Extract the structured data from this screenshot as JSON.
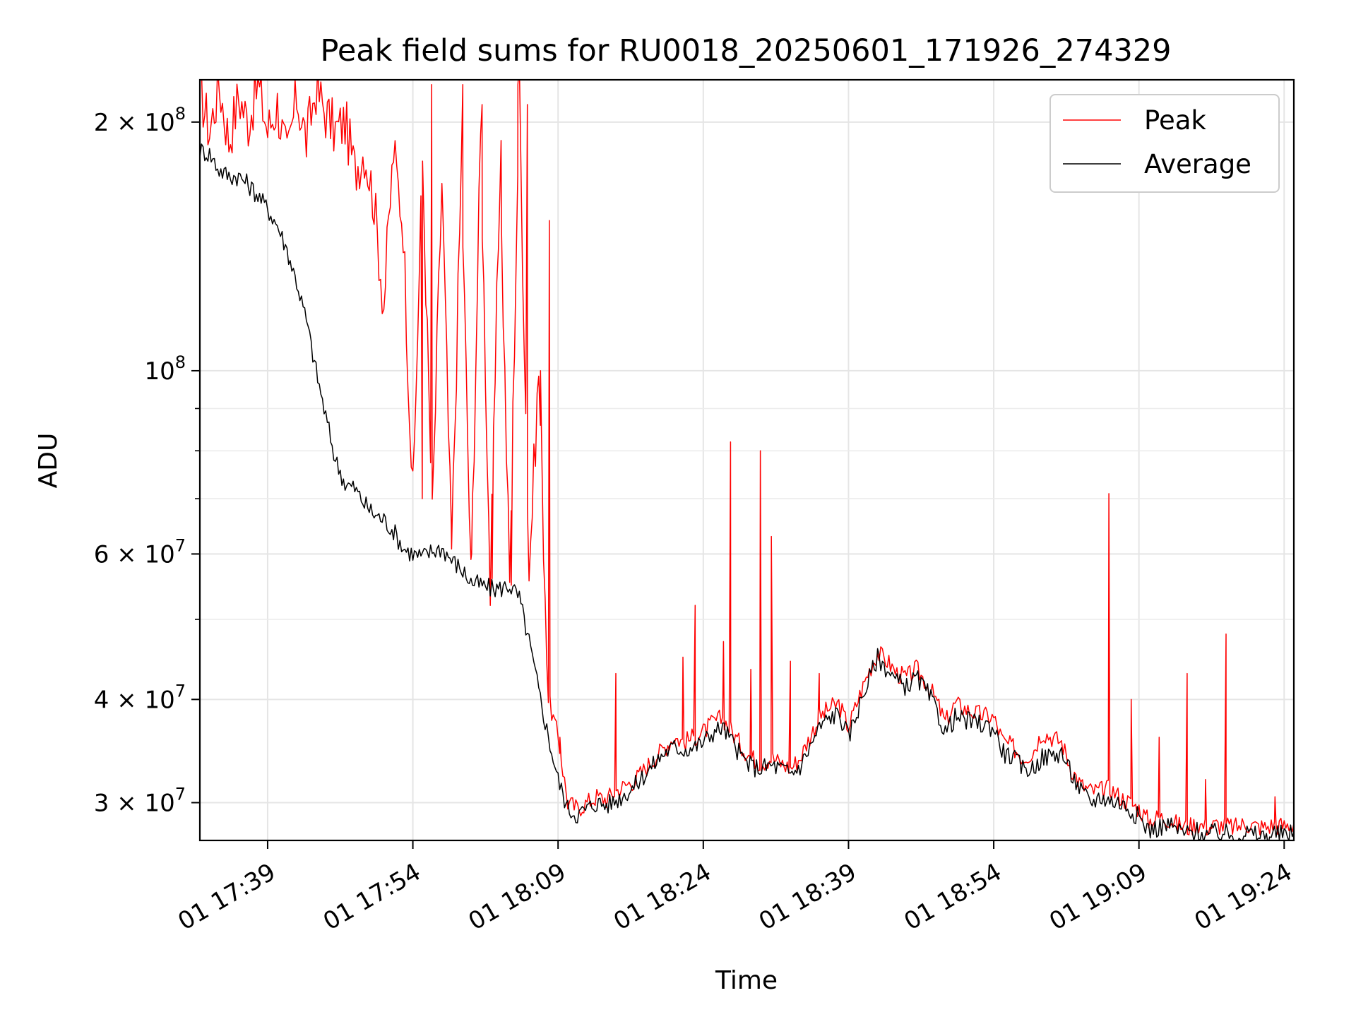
{
  "chart_data": {
    "type": "line",
    "title": "Peak field sums for RU0018_20250601_171926_274329",
    "xlabel": "Time",
    "ylabel": "ADU",
    "yscale": "log",
    "ylim": [
      27000000,
      225000000
    ],
    "xlim": [
      "01 17:32:00",
      "01 19:25:00"
    ],
    "grid": true,
    "legend_position": "top-right",
    "x_ticks": [
      "01 17:39",
      "01 17:54",
      "01 18:09",
      "01 18:24",
      "01 18:39",
      "01 18:54",
      "01 19:09",
      "01 19:24"
    ],
    "y_tick_labels": [
      {
        "value": 200000000,
        "base": "2 × 10",
        "exp": "8"
      },
      {
        "value": 100000000,
        "base": "10",
        "exp": "8"
      },
      {
        "value": 60000000,
        "base": "6 × 10",
        "exp": "7"
      },
      {
        "value": 40000000,
        "base": "4 × 10",
        "exp": "7"
      },
      {
        "value": 30000000,
        "base": "3 × 10",
        "exp": "7"
      }
    ],
    "y_minor_ticks": [
      50000000,
      70000000,
      80000000,
      90000000
    ],
    "series": [
      {
        "name": "Peak",
        "color": "#ff0000",
        "points": [
          [
            "17:32",
            220000000
          ],
          [
            "17:33",
            195000000
          ],
          [
            "17:34",
            222000000
          ],
          [
            "17:35",
            190000000
          ],
          [
            "17:36",
            215000000
          ],
          [
            "17:37",
            200000000
          ],
          [
            "17:38",
            222000000
          ],
          [
            "17:39",
            195000000
          ],
          [
            "17:40",
            210000000
          ],
          [
            "17:41",
            180000000
          ],
          [
            "17:42",
            215000000
          ],
          [
            "17:43",
            190000000
          ],
          [
            "17:44",
            220000000
          ],
          [
            "17:45",
            205000000
          ],
          [
            "17:46",
            195000000
          ],
          [
            "17:47",
            200000000
          ],
          [
            "17:48",
            175000000
          ],
          [
            "17:49",
            185000000
          ],
          [
            "17:50",
            160000000
          ],
          [
            "17:51",
            120000000
          ],
          [
            "17:52",
            185000000
          ],
          [
            "17:53",
            150000000
          ],
          [
            "17:54",
            70000000
          ],
          [
            "17:55",
            180000000
          ],
          [
            "17:56",
            66000000
          ],
          [
            "17:57",
            170000000
          ],
          [
            "17:58",
            60000000
          ],
          [
            "17:59",
            175000000
          ],
          [
            "18:00",
            56000000
          ],
          [
            "18:01",
            190000000
          ],
          [
            "18:02",
            54000000
          ],
          [
            "18:03",
            175000000
          ],
          [
            "18:04",
            55000000
          ],
          [
            "18:05",
            222000000
          ],
          [
            "18:06",
            57000000
          ],
          [
            "18:07",
            100000000
          ],
          [
            "18:08",
            40000000
          ],
          [
            "18:09",
            36000000
          ],
          [
            "18:10",
            30000000
          ],
          [
            "18:11",
            29500000
          ],
          [
            "18:12",
            30000000
          ],
          [
            "18:13",
            30500000
          ],
          [
            "18:14",
            30300000
          ],
          [
            "18:15",
            31000000
          ],
          [
            "18:16",
            31500000
          ],
          [
            "18:17",
            32000000
          ],
          [
            "18:18",
            33000000
          ],
          [
            "18:19",
            34000000
          ],
          [
            "18:20",
            35000000
          ],
          [
            "18:21",
            36000000
          ],
          [
            "18:22",
            35500000
          ],
          [
            "18:23",
            36000000
          ],
          [
            "18:24",
            36500000
          ],
          [
            "18:25",
            37500000
          ],
          [
            "18:26",
            38000000
          ],
          [
            "18:27",
            36500000
          ],
          [
            "18:28",
            35000000
          ],
          [
            "18:29",
            34000000
          ],
          [
            "18:30",
            33500000
          ],
          [
            "18:31",
            34000000
          ],
          [
            "18:32",
            33500000
          ],
          [
            "18:33",
            33000000
          ],
          [
            "18:34",
            34000000
          ],
          [
            "18:35",
            36000000
          ],
          [
            "18:36",
            38000000
          ],
          [
            "18:37",
            39000000
          ],
          [
            "18:38",
            39500000
          ],
          [
            "18:39",
            37000000
          ],
          [
            "18:40",
            40000000
          ],
          [
            "18:41",
            43000000
          ],
          [
            "18:42",
            45500000
          ],
          [
            "18:43",
            44500000
          ],
          [
            "18:44",
            43000000
          ],
          [
            "18:45",
            42500000
          ],
          [
            "18:46",
            43500000
          ],
          [
            "18:47",
            42000000
          ],
          [
            "18:48",
            40000000
          ],
          [
            "18:49",
            37500000
          ],
          [
            "18:50",
            39500000
          ],
          [
            "18:52",
            38500000
          ],
          [
            "18:54",
            38000000
          ],
          [
            "18:55",
            35500000
          ],
          [
            "18:56",
            35000000
          ],
          [
            "18:57",
            34000000
          ],
          [
            "18:58",
            34500000
          ],
          [
            "18:59",
            36500000
          ],
          [
            "19:00",
            36000000
          ],
          [
            "19:01",
            35500000
          ],
          [
            "19:02",
            33000000
          ],
          [
            "19:03",
            31500000
          ],
          [
            "19:04",
            31000000
          ],
          [
            "19:05",
            31000000
          ],
          [
            "19:06",
            31200000
          ],
          [
            "19:07",
            30500000
          ],
          [
            "19:08",
            30000000
          ],
          [
            "19:09",
            29500000
          ],
          [
            "19:10",
            28500000
          ],
          [
            "19:11",
            28800000
          ],
          [
            "19:12",
            28700000
          ],
          [
            "19:13",
            28200000
          ],
          [
            "19:14",
            28000000
          ],
          [
            "19:15",
            28300000
          ],
          [
            "19:16",
            28000000
          ],
          [
            "19:17",
            28200000
          ],
          [
            "19:18",
            28100000
          ],
          [
            "19:19",
            28000000
          ],
          [
            "19:20",
            28300000
          ],
          [
            "19:21",
            28100000
          ],
          [
            "19:22",
            28000000
          ],
          [
            "19:23",
            28200000
          ],
          [
            "19:24",
            28100000
          ],
          [
            "19:25",
            28300000
          ]
        ],
        "spikes": [
          [
            "17:55",
            70000000
          ],
          [
            "17:56",
            222000000
          ],
          [
            "17:58",
            65000000
          ],
          [
            "17:59",
            222000000
          ],
          [
            "18:00",
            60000000
          ],
          [
            "18:01",
            210000000
          ],
          [
            "18:02",
            56000000
          ],
          [
            "18:03",
            190000000
          ],
          [
            "18:04",
            55000000
          ],
          [
            "18:05",
            222000000
          ],
          [
            "18:06",
            210000000
          ],
          [
            "18:07",
            100000000
          ],
          [
            "18:08",
            152000000
          ],
          [
            "18:09",
            36000000
          ],
          [
            "18:15",
            43000000
          ],
          [
            "18:22",
            45000000
          ],
          [
            "18:23",
            52000000
          ],
          [
            "18:26",
            47000000
          ],
          [
            "18:27",
            82000000
          ],
          [
            "18:29",
            43500000
          ],
          [
            "18:30",
            80000000
          ],
          [
            "18:31",
            63000000
          ],
          [
            "18:33",
            44500000
          ],
          [
            "18:36",
            43000000
          ],
          [
            "19:06",
            71000000
          ],
          [
            "19:08",
            40000000
          ],
          [
            "19:11",
            36000000
          ],
          [
            "19:14",
            43000000
          ],
          [
            "19:16",
            32000000
          ],
          [
            "19:18",
            48000000
          ],
          [
            "19:23",
            30500000
          ]
        ]
      },
      {
        "name": "Average",
        "color": "#000000",
        "points": [
          [
            "17:32",
            185000000
          ],
          [
            "17:33",
            183000000
          ],
          [
            "17:34",
            175000000
          ],
          [
            "17:35",
            172000000
          ],
          [
            "17:36",
            172000000
          ],
          [
            "17:37",
            168000000
          ],
          [
            "17:38",
            163000000
          ],
          [
            "17:39",
            157000000
          ],
          [
            "17:40",
            150000000
          ],
          [
            "17:41",
            140000000
          ],
          [
            "17:42",
            128000000
          ],
          [
            "17:43",
            115000000
          ],
          [
            "17:44",
            100000000
          ],
          [
            "17:45",
            88000000
          ],
          [
            "17:46",
            78000000
          ],
          [
            "17:47",
            73000000
          ],
          [
            "17:48",
            72000000
          ],
          [
            "17:49",
            69000000
          ],
          [
            "17:50",
            67000000
          ],
          [
            "17:51",
            66000000
          ],
          [
            "17:52",
            64000000
          ],
          [
            "17:53",
            61000000
          ],
          [
            "17:54",
            60000000
          ],
          [
            "17:55",
            59500000
          ],
          [
            "17:56",
            60500000
          ],
          [
            "17:57",
            61000000
          ],
          [
            "17:58",
            59000000
          ],
          [
            "17:59",
            57500000
          ],
          [
            "18:00",
            55500000
          ],
          [
            "18:01",
            55000000
          ],
          [
            "18:02",
            54500000
          ],
          [
            "18:03",
            54500000
          ],
          [
            "18:04",
            55000000
          ],
          [
            "18:05",
            53000000
          ],
          [
            "18:06",
            47000000
          ],
          [
            "18:07",
            41000000
          ],
          [
            "18:08",
            36000000
          ],
          [
            "18:09",
            32000000
          ],
          [
            "18:10",
            29500000
          ],
          [
            "18:11",
            29000000
          ],
          [
            "18:12",
            29500000
          ],
          [
            "18:13",
            30000000
          ],
          [
            "18:14",
            29800000
          ],
          [
            "18:15",
            30200000
          ],
          [
            "18:16",
            30800000
          ],
          [
            "18:17",
            31500000
          ],
          [
            "18:18",
            32500000
          ],
          [
            "18:19",
            33500000
          ],
          [
            "18:20",
            34500000
          ],
          [
            "18:21",
            35000000
          ],
          [
            "18:22",
            34800000
          ],
          [
            "18:23",
            35000000
          ],
          [
            "18:24",
            35500000
          ],
          [
            "18:25",
            36500000
          ],
          [
            "18:26",
            37000000
          ],
          [
            "18:27",
            35500000
          ],
          [
            "18:28",
            34000000
          ],
          [
            "18:29",
            33200000
          ],
          [
            "18:30",
            33000000
          ],
          [
            "18:31",
            33300000
          ],
          [
            "18:32",
            33000000
          ],
          [
            "18:33",
            32500000
          ],
          [
            "18:34",
            33200000
          ],
          [
            "18:35",
            35000000
          ],
          [
            "18:36",
            37000000
          ],
          [
            "18:37",
            38000000
          ],
          [
            "18:38",
            38500000
          ],
          [
            "18:39",
            36000000
          ],
          [
            "18:40",
            39000000
          ],
          [
            "18:41",
            42000000
          ],
          [
            "18:42",
            45000000
          ],
          [
            "18:43",
            43500000
          ],
          [
            "18:44",
            42000000
          ],
          [
            "18:45",
            41500000
          ],
          [
            "18:46",
            42500000
          ],
          [
            "18:47",
            41000000
          ],
          [
            "18:48",
            39000000
          ],
          [
            "18:49",
            36500000
          ],
          [
            "18:50",
            38000000
          ],
          [
            "18:52",
            37500000
          ],
          [
            "18:54",
            37000000
          ],
          [
            "18:55",
            34500000
          ],
          [
            "18:56",
            34000000
          ],
          [
            "18:57",
            33000000
          ],
          [
            "18:58",
            33000000
          ],
          [
            "18:59",
            34000000
          ],
          [
            "19:00",
            34200000
          ],
          [
            "19:01",
            34500000
          ],
          [
            "19:02",
            32500000
          ],
          [
            "19:03",
            31000000
          ],
          [
            "19:04",
            30000000
          ],
          [
            "19:05",
            30500000
          ],
          [
            "19:06",
            30200000
          ],
          [
            "19:07",
            30000000
          ],
          [
            "19:08",
            29500000
          ],
          [
            "19:09",
            28800000
          ],
          [
            "19:10",
            27800000
          ],
          [
            "19:11",
            28000000
          ],
          [
            "19:12",
            28200000
          ],
          [
            "19:13",
            27800000
          ],
          [
            "19:14",
            27500000
          ],
          [
            "19:15",
            27700000
          ],
          [
            "19:16",
            27400000
          ],
          [
            "19:17",
            27600000
          ],
          [
            "19:18",
            27500000
          ],
          [
            "19:19",
            27300000
          ],
          [
            "19:20",
            27600000
          ],
          [
            "19:21",
            27400000
          ],
          [
            "19:22",
            27300000
          ],
          [
            "19:23",
            27500000
          ],
          [
            "19:24",
            27400000
          ],
          [
            "19:25",
            27600000
          ]
        ]
      }
    ]
  }
}
